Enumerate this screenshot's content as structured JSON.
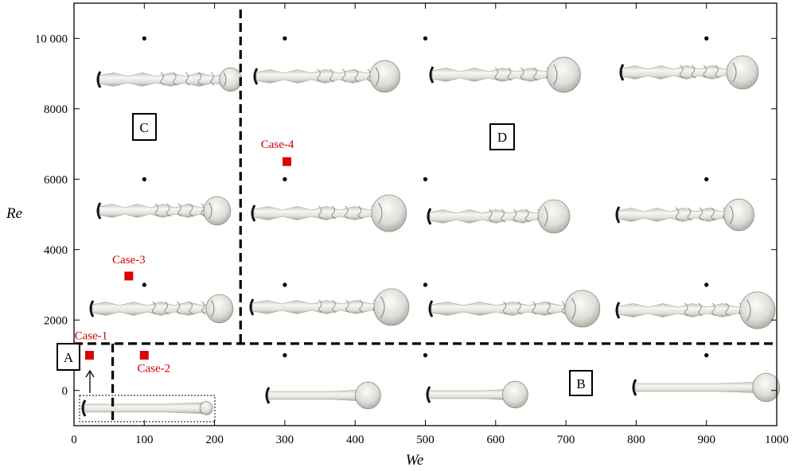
{
  "chart_data": {
    "type": "scatter",
    "xlabel": "We",
    "ylabel": "Re",
    "xlim": [
      0,
      1000
    ],
    "ylim": [
      -1000,
      11000
    ],
    "xticks": [
      "0",
      "100",
      "200",
      "300",
      "400",
      "500",
      "600",
      "700",
      "800",
      "900",
      "1000"
    ],
    "yticks": [
      "0",
      "2000",
      "4000",
      "6000",
      "8000",
      "10 000"
    ],
    "ytick_values": [
      0,
      2000,
      4000,
      6000,
      8000,
      10000
    ],
    "simulation_points": [
      {
        "x": 100,
        "y": 10000
      },
      {
        "x": 300,
        "y": 10000
      },
      {
        "x": 500,
        "y": 10000
      },
      {
        "x": 900,
        "y": 10000
      },
      {
        "x": 100,
        "y": 6000
      },
      {
        "x": 300,
        "y": 6000
      },
      {
        "x": 500,
        "y": 6000
      },
      {
        "x": 900,
        "y": 6000
      },
      {
        "x": 100,
        "y": 3000
      },
      {
        "x": 300,
        "y": 3000
      },
      {
        "x": 500,
        "y": 3000
      },
      {
        "x": 900,
        "y": 3000
      },
      {
        "x": 300,
        "y": 1000
      },
      {
        "x": 500,
        "y": 1000
      },
      {
        "x": 900,
        "y": 1000
      }
    ],
    "cases": [
      {
        "label": "Case-1",
        "x": 22,
        "y": 1000
      },
      {
        "label": "Case-2",
        "x": 100,
        "y": 1000
      },
      {
        "label": "Case-3",
        "x": 78,
        "y": 3250
      },
      {
        "label": "Case-4",
        "x": 303,
        "y": 6500
      }
    ],
    "regions": [
      "A",
      "B",
      "C",
      "D"
    ],
    "boundaries": {
      "vertical_CD_x": 237,
      "horizontal_Re": 1330,
      "vertical_AB_x": 55
    },
    "colors": {
      "case_marker": "#dd0000",
      "case_text": "#cc0000",
      "jet_fill": "#e6e6e1",
      "nozzle": "#111111"
    }
  }
}
